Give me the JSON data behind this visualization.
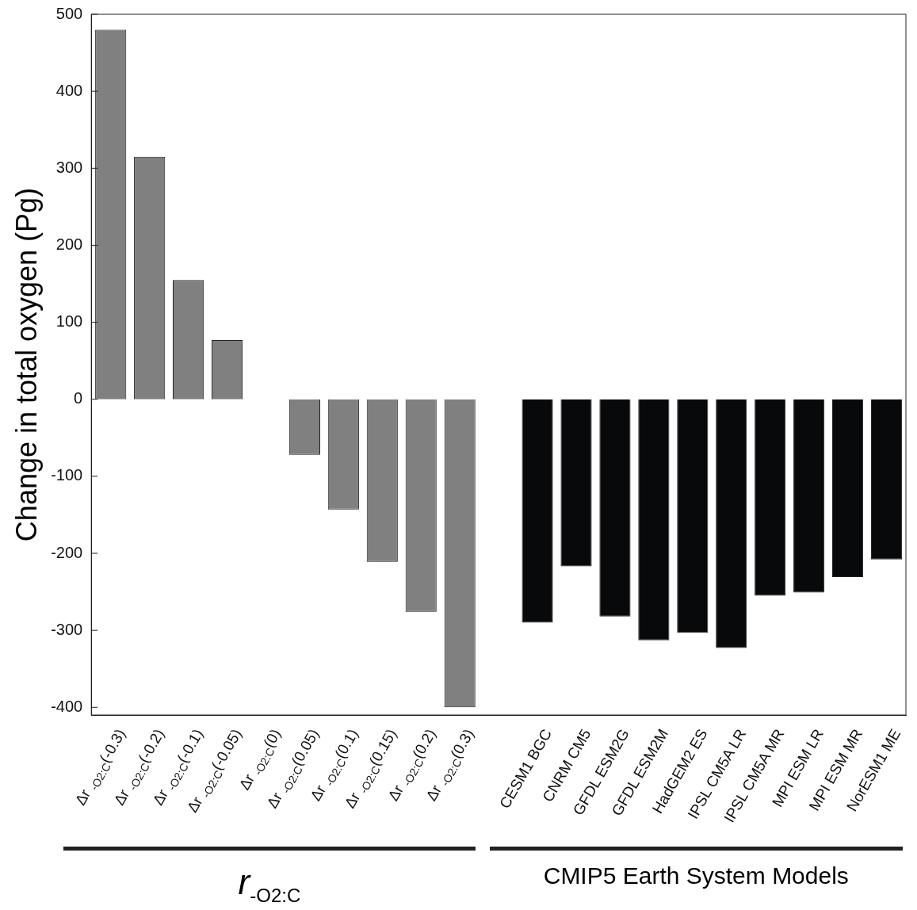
{
  "chart_data": {
    "type": "bar",
    "ylabel": "Change in total oxygen (Pg)",
    "categories": [
      "Δr $_{-O2:C}$(-0.3)",
      "Δr $_{-O2:C}$(-0.2)",
      "Δr $_{-O2:C}$(-0.1)",
      "Δr $_{-O2:C}$(-0.05)",
      "Δr $_{-O2:C}$(0)",
      "Δr $_{-O2:C}$(0.05)",
      "Δr $_{-O2:C}$(0.1)",
      "Δr $_{-O2:C}$(0.15)",
      "Δr $_{-O2:C}$(0.2)",
      "Δr $_{-O2:C}$(0.3)",
      null,
      "CESM1 BGC",
      "CNRM CM5",
      "GFDL ESM2G",
      "GFDL ESM2M",
      "HadGEM2 ES",
      "IPSL CM5A LR",
      "IPSL CM5A MR",
      "MPI ESM LR",
      "MPI ESM MR",
      "NorESM1 ME"
    ],
    "values": [
      480,
      315,
      155,
      77,
      0,
      -72,
      -143,
      -211,
      -276,
      -400,
      0,
      -290,
      -217,
      -282,
      -313,
      -303,
      -323,
      -255,
      -251,
      -231,
      -208
    ],
    "colors": [
      "#808080",
      "#808080",
      "#808080",
      "#808080",
      "#808080",
      "#808080",
      "#808080",
      "#808080",
      "#808080",
      "#808080",
      "#808080",
      "#08090b",
      "#08090b",
      "#08090b",
      "#08090b",
      "#08090b",
      "#08090b",
      "#08090b",
      "#08090b",
      "#08090b",
      "#08090b"
    ],
    "ylim": [
      -410,
      500
    ],
    "yticks": [
      -400,
      -300,
      -200,
      -100,
      0,
      100,
      200,
      300,
      400,
      500
    ],
    "annotations": [
      "r$_{-O2:C}$",
      "CMIP5 Earth System Models"
    ],
    "grid": false,
    "legend": false
  }
}
